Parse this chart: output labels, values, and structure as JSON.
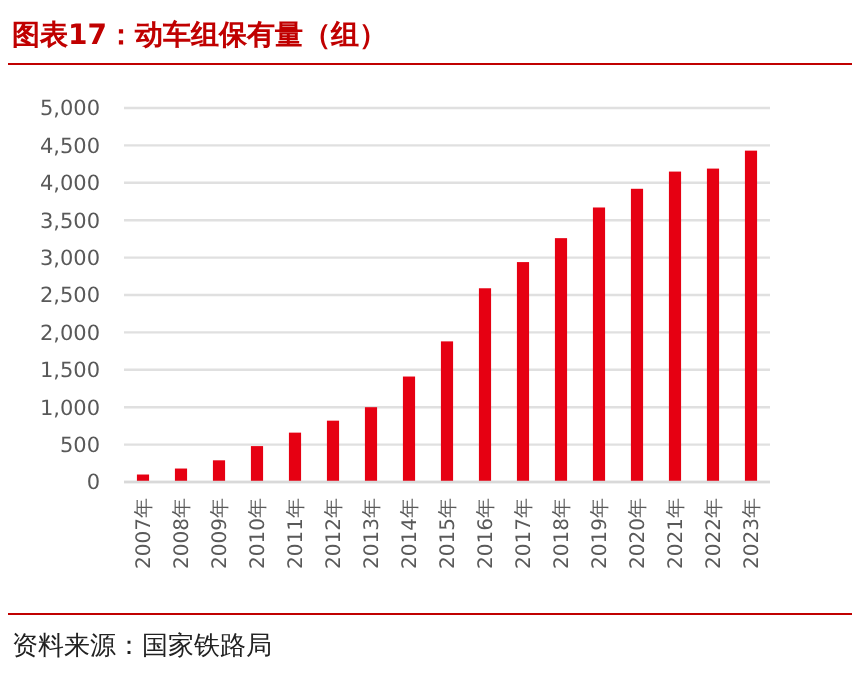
{
  "chart_data": {
    "type": "bar",
    "title": "图表17：动车组保有量（组）",
    "categories": [
      "2007年",
      "2008年",
      "2009年",
      "2010年",
      "2011年",
      "2012年",
      "2013年",
      "2014年",
      "2015年",
      "2016年",
      "2017年",
      "2018年",
      "2019年",
      "2020年",
      "2021年",
      "2022年",
      "2023年"
    ],
    "values": [
      100,
      180,
      290,
      480,
      660,
      820,
      1000,
      1410,
      1880,
      2590,
      2940,
      3260,
      3670,
      3920,
      4150,
      4190,
      4430
    ],
    "color": "#e60012",
    "ylim": [
      0,
      5000
    ],
    "yticks": [
      {
        "value": 0,
        "label": "0"
      },
      {
        "value": 500,
        "label": "500"
      },
      {
        "value": 1000,
        "label": "1,000"
      },
      {
        "value": 1500,
        "label": "1,500"
      },
      {
        "value": 2000,
        "label": "2,000"
      },
      {
        "value": 2500,
        "label": "2,500"
      },
      {
        "value": 3000,
        "label": "3,000"
      },
      {
        "value": 3500,
        "label": "3,500"
      },
      {
        "value": 4000,
        "label": "4,000"
      },
      {
        "value": 4500,
        "label": "4,500"
      },
      {
        "value": 5000,
        "label": "5,000"
      }
    ],
    "grid": "y",
    "annotations": [
      "资料来源：国家铁路局"
    ]
  }
}
